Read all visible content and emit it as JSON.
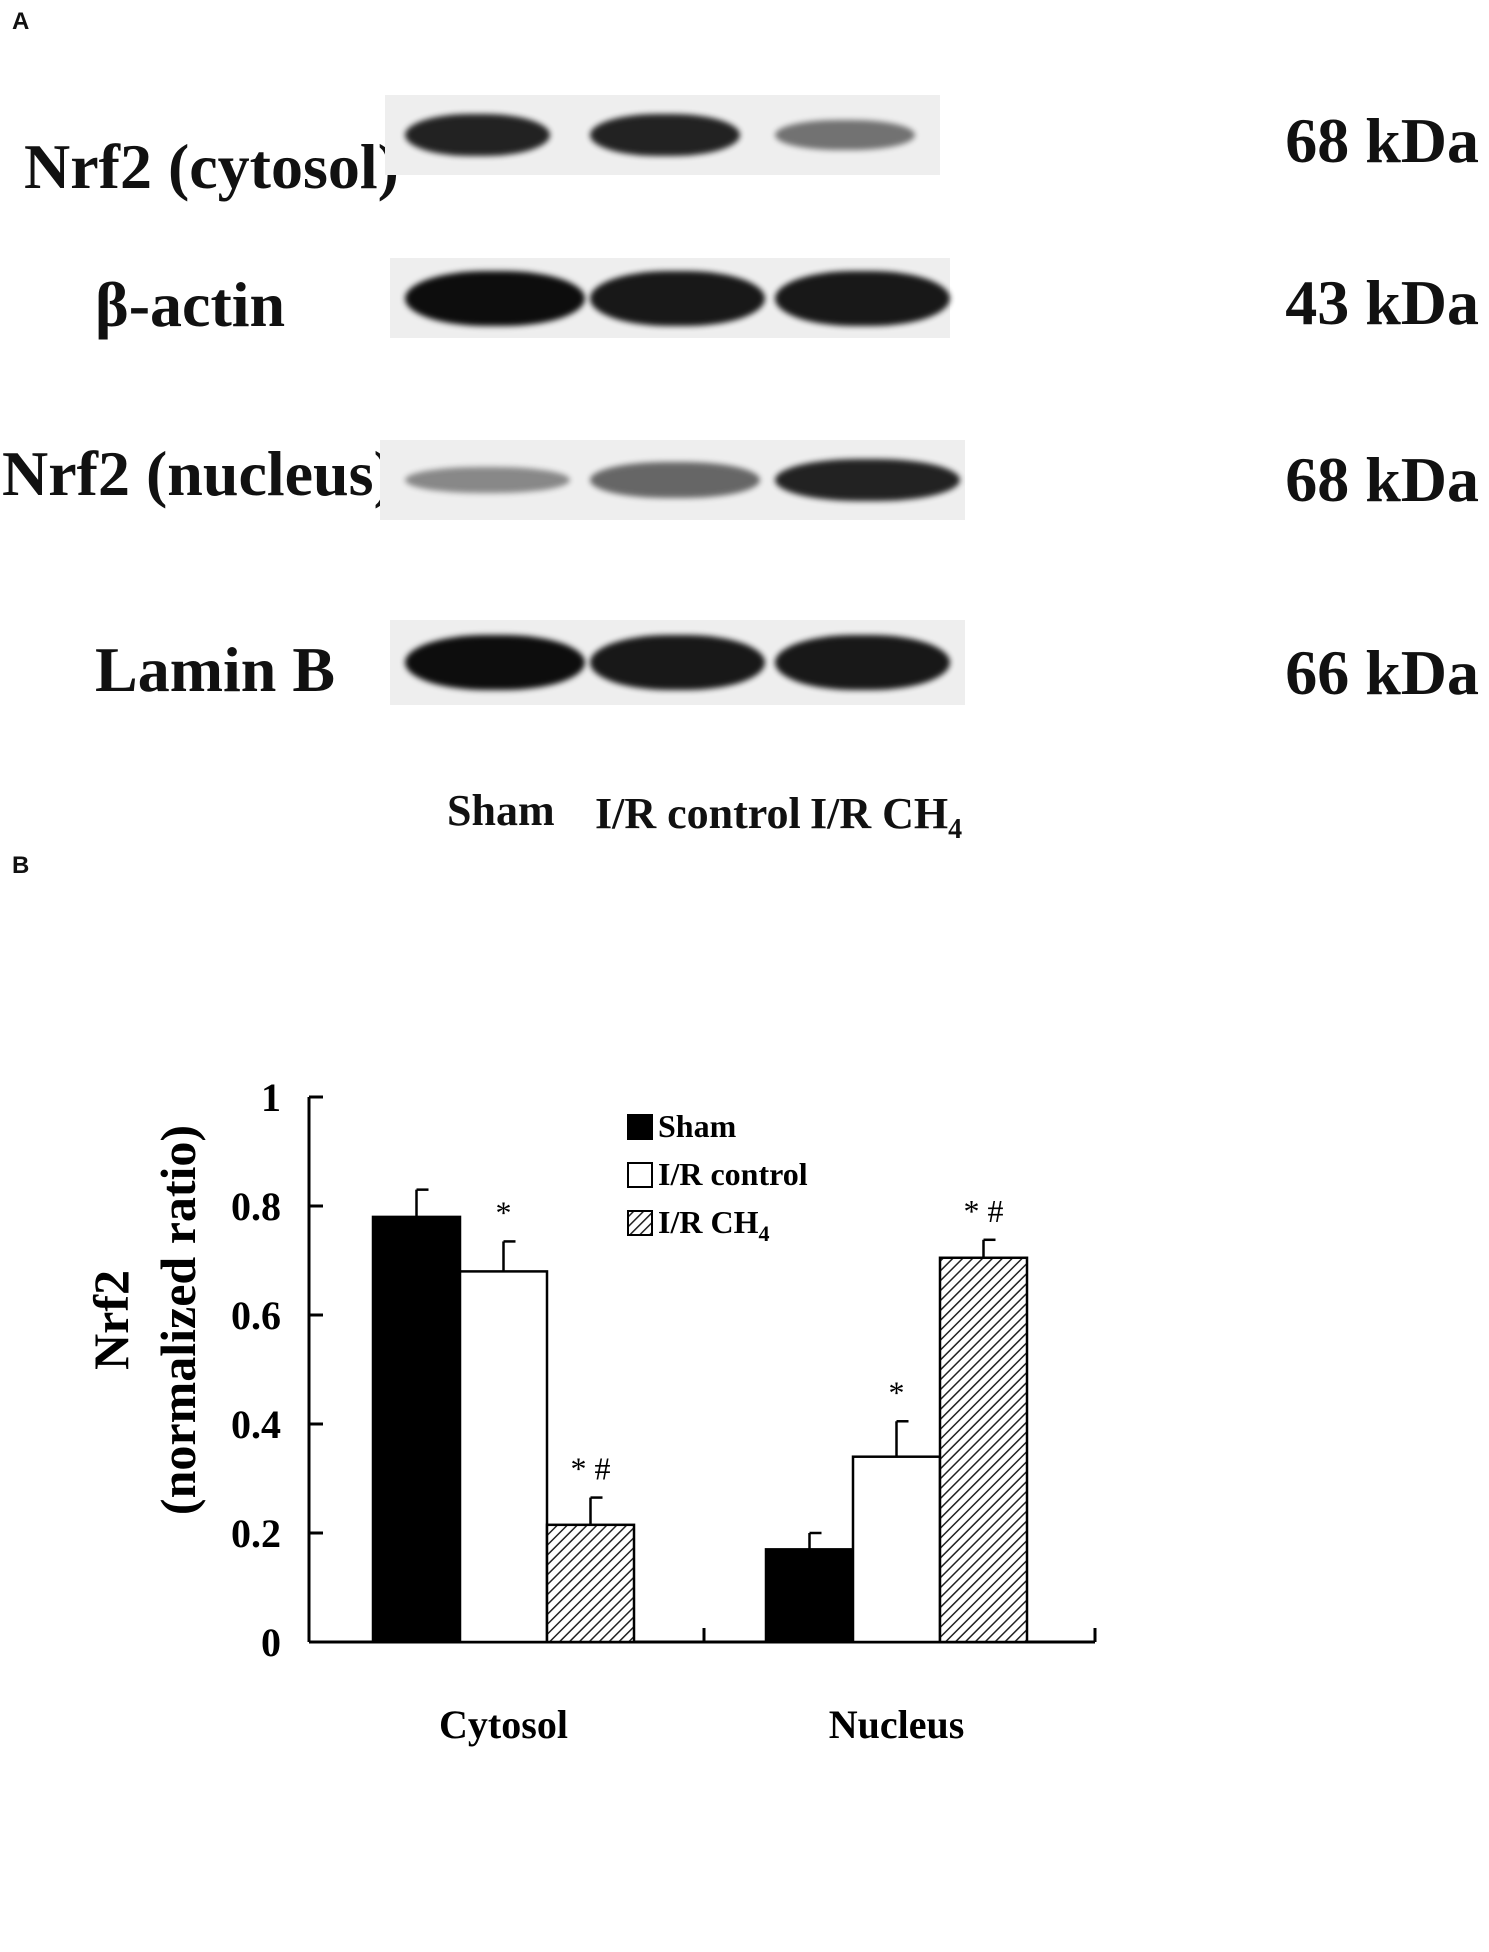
{
  "panel_a": {
    "letter": "A",
    "rows": [
      {
        "label": "Nrf2 (cytosol)",
        "kda": "68 kDa",
        "band_intensity": [
          0.9,
          0.9,
          0.55
        ]
      },
      {
        "label": "β-actin",
        "kda": "43 kDa",
        "band_intensity": [
          1.0,
          0.95,
          0.95
        ]
      },
      {
        "label": "Nrf2 (nucleus)",
        "kda": "68 kDa",
        "band_intensity": [
          0.45,
          0.6,
          0.9
        ]
      },
      {
        "label": "Lamin B",
        "kda": "66 kDa",
        "band_intensity": [
          1.0,
          0.95,
          0.95
        ]
      }
    ],
    "lanes": [
      {
        "text": "Sham",
        "sub": ""
      },
      {
        "text": "I/R control",
        "sub": ""
      },
      {
        "text": "I/R CH",
        "sub": "4"
      }
    ]
  },
  "panel_b": {
    "letter": "B"
  },
  "chart_data": {
    "type": "bar",
    "title": "",
    "ylabel_line1": "Nrf2",
    "ylabel_line2": "(normalized ratio)",
    "xlabel": "",
    "categories": [
      "Cytosol",
      "Nucleus"
    ],
    "ylim": [
      0,
      1
    ],
    "yticks": [
      "0",
      "0.2",
      "0.4",
      "0.6",
      "0.8",
      "1"
    ],
    "legend_position": "top-right",
    "series": [
      {
        "name": "Sham",
        "name_sub": "",
        "fill": "solid",
        "color": "#000000",
        "values": [
          0.78,
          0.17
        ],
        "errors": [
          0.05,
          0.03
        ],
        "annotations": [
          "",
          ""
        ]
      },
      {
        "name": "I/R control",
        "name_sub": "",
        "fill": "open",
        "color": "#ffffff",
        "values": [
          0.68,
          0.34
        ],
        "errors": [
          0.055,
          0.065
        ],
        "annotations": [
          "*",
          "*"
        ]
      },
      {
        "name": "I/R CH",
        "name_sub": "4",
        "fill": "hatched",
        "color": "#555555",
        "values": [
          0.215,
          0.705
        ],
        "errors": [
          0.05,
          0.033
        ],
        "annotations": [
          "* #",
          "* #"
        ]
      }
    ]
  }
}
